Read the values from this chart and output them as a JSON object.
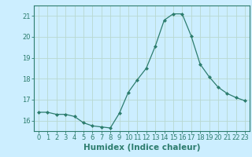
{
  "x": [
    0,
    1,
    2,
    3,
    4,
    5,
    6,
    7,
    8,
    9,
    10,
    11,
    12,
    13,
    14,
    15,
    16,
    17,
    18,
    19,
    20,
    21,
    22,
    23
  ],
  "y": [
    16.4,
    16.4,
    16.3,
    16.3,
    16.2,
    15.9,
    15.75,
    15.7,
    15.65,
    16.35,
    17.35,
    17.95,
    18.5,
    19.55,
    20.8,
    21.1,
    21.1,
    20.05,
    18.7,
    18.1,
    17.6,
    17.3,
    17.1,
    16.95
  ],
  "line_color": "#2d7d6e",
  "marker": "D",
  "marker_size": 2.0,
  "bg_color": "#cceeff",
  "grid_color": "#b8d8d0",
  "xlabel": "Humidex (Indice chaleur)",
  "xlabel_fontsize": 7.5,
  "ylim": [
    15.5,
    21.5
  ],
  "yticks": [
    16,
    17,
    18,
    19,
    20,
    21
  ],
  "xtick_labels": [
    "0",
    "1",
    "2",
    "3",
    "4",
    "5",
    "6",
    "7",
    "8",
    "9",
    "10",
    "11",
    "12",
    "13",
    "14",
    "15",
    "16",
    "17",
    "18",
    "19",
    "20",
    "21",
    "22",
    "23"
  ],
  "tick_fontsize": 6.0
}
